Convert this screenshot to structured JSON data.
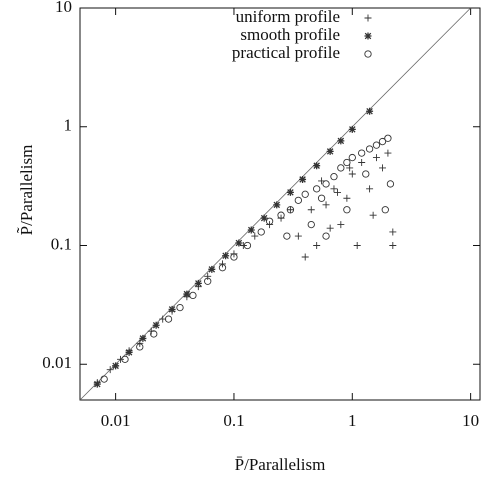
{
  "chart_data": {
    "type": "scatter",
    "x_label": "P̄/Parallelism",
    "y_label": "P̃/Parallelism",
    "xlog": true,
    "ylog": true,
    "xlim": [
      0.005,
      12
    ],
    "ylim": [
      0.005,
      10
    ],
    "xticks": [
      0.01,
      0.1,
      1,
      10
    ],
    "yticks": [
      0.01,
      0.1,
      1,
      10
    ],
    "legend": "top",
    "series": [
      {
        "name": "uniform profile",
        "color": "#333333",
        "marker": "plus",
        "x": [
          0.007,
          0.009,
          0.011,
          0.013,
          0.016,
          0.02,
          0.025,
          0.03,
          0.04,
          0.05,
          0.06,
          0.08,
          0.1,
          0.12,
          0.15,
          0.2,
          0.25,
          0.3,
          0.35,
          0.4,
          0.5,
          0.6,
          0.7,
          0.8,
          0.9,
          1.0,
          1.2,
          1.4,
          1.6,
          1.8,
          2.0,
          2.2,
          0.45,
          0.55,
          0.75,
          1.1,
          1.5,
          2.2,
          0.65,
          0.95
        ],
        "values": [
          0.007,
          0.009,
          0.011,
          0.013,
          0.015,
          0.019,
          0.024,
          0.028,
          0.037,
          0.045,
          0.055,
          0.07,
          0.085,
          0.1,
          0.12,
          0.15,
          0.17,
          0.2,
          0.12,
          0.08,
          0.1,
          0.22,
          0.3,
          0.15,
          0.25,
          0.4,
          0.5,
          0.3,
          0.55,
          0.45,
          0.6,
          0.13,
          0.2,
          0.35,
          0.28,
          0.1,
          0.18,
          0.1,
          0.14,
          0.45
        ]
      },
      {
        "name": "smooth profile",
        "color": "#333333",
        "marker": "star",
        "x": [
          0.007,
          0.01,
          0.013,
          0.017,
          0.022,
          0.03,
          0.04,
          0.05,
          0.065,
          0.085,
          0.11,
          0.14,
          0.18,
          0.23,
          0.3,
          0.38,
          0.5,
          0.65,
          0.8,
          1.0,
          1.4
        ],
        "values": [
          0.0068,
          0.0097,
          0.0126,
          0.0165,
          0.0213,
          0.029,
          0.039,
          0.048,
          0.063,
          0.082,
          0.105,
          0.135,
          0.17,
          0.22,
          0.28,
          0.36,
          0.47,
          0.62,
          0.76,
          0.95,
          1.35
        ]
      },
      {
        "name": "practical profile",
        "color": "#333333",
        "marker": "circle",
        "x": [
          0.008,
          0.012,
          0.016,
          0.021,
          0.028,
          0.035,
          0.045,
          0.06,
          0.08,
          0.1,
          0.13,
          0.17,
          0.2,
          0.25,
          0.3,
          0.35,
          0.4,
          0.5,
          0.6,
          0.7,
          0.8,
          0.9,
          1.0,
          1.2,
          1.4,
          1.6,
          1.8,
          2.0,
          0.28,
          0.45,
          0.55,
          0.9,
          1.3,
          1.9,
          2.1,
          0.6
        ],
        "values": [
          0.0075,
          0.011,
          0.014,
          0.018,
          0.024,
          0.03,
          0.038,
          0.05,
          0.065,
          0.08,
          0.1,
          0.13,
          0.16,
          0.18,
          0.2,
          0.24,
          0.27,
          0.3,
          0.33,
          0.38,
          0.45,
          0.5,
          0.55,
          0.6,
          0.65,
          0.7,
          0.75,
          0.8,
          0.12,
          0.15,
          0.25,
          0.2,
          0.4,
          0.2,
          0.33,
          0.12
        ]
      }
    ]
  }
}
